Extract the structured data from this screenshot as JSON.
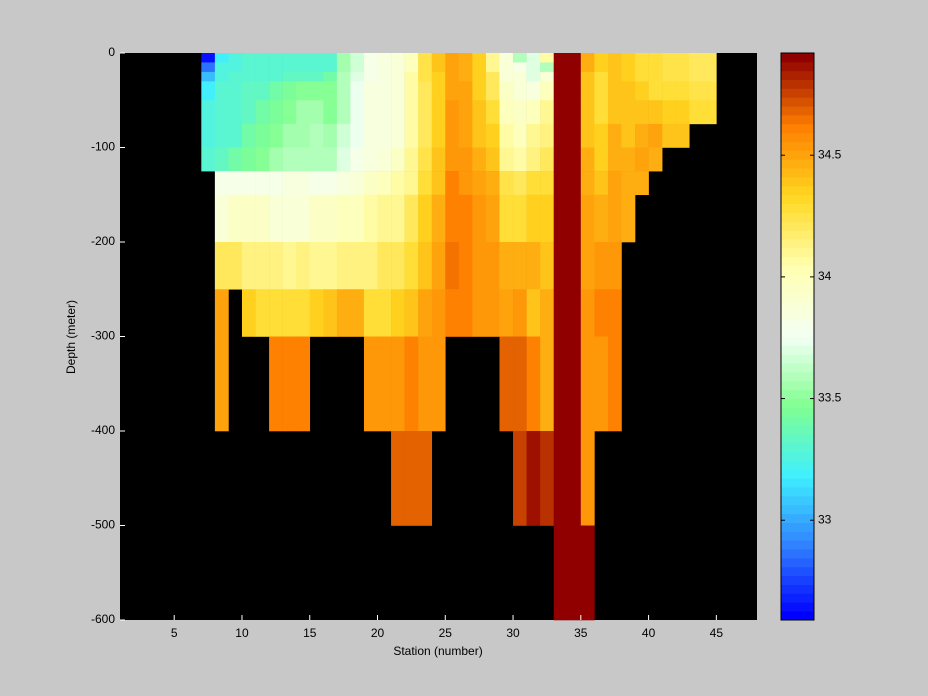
{
  "chart_data": {
    "type": "heatmap",
    "xlabel": "Station (number)",
    "ylabel": "Depth (meter)",
    "x": [
      1,
      2,
      3,
      4,
      5,
      6,
      7,
      8,
      9,
      10,
      11,
      12,
      13,
      14,
      15,
      16,
      17,
      18,
      19,
      20,
      21,
      22,
      23,
      24,
      25,
      26,
      27,
      28,
      29,
      30,
      31,
      32,
      33,
      34,
      35,
      36,
      37,
      38,
      39,
      40,
      41,
      42,
      43,
      44,
      45,
      46,
      47,
      48
    ],
    "y": [
      0,
      -10,
      -20,
      -30,
      -50,
      -75,
      -100,
      -125,
      -150,
      -200,
      -250,
      -300,
      -400,
      -500,
      -600
    ],
    "z": [
      [
        null,
        null,
        null,
        null,
        null,
        null,
        null,
        null,
        null,
        null,
        null,
        null,
        null,
        null
      ],
      [
        null,
        null,
        null,
        null,
        null,
        null,
        null,
        null,
        null,
        null,
        null,
        null,
        null,
        null
      ],
      [
        null,
        null,
        null,
        null,
        null,
        null,
        null,
        null,
        null,
        null,
        null,
        null,
        null,
        null
      ],
      [
        null,
        null,
        null,
        null,
        null,
        null,
        null,
        null,
        null,
        null,
        null,
        null,
        null,
        null
      ],
      [
        null,
        null,
        null,
        null,
        null,
        null,
        null,
        null,
        null,
        null,
        null,
        null,
        null,
        null
      ],
      [
        null,
        null,
        null,
        null,
        null,
        null,
        null,
        null,
        null,
        null,
        null,
        null,
        null,
        null
      ],
      [
        32.65,
        32.85,
        33.05,
        33.2,
        33.25,
        33.25,
        33.3,
        null,
        null,
        null,
        null,
        null,
        null,
        null
      ],
      [
        33.2,
        33.25,
        33.25,
        33.3,
        33.3,
        33.3,
        33.35,
        33.8,
        33.9,
        34.2,
        34.5,
        34.5,
        null,
        null
      ],
      [
        33.25,
        33.25,
        33.3,
        33.3,
        33.3,
        33.3,
        33.4,
        33.8,
        33.95,
        34.2,
        null,
        null,
        null,
        null
      ],
      [
        33.3,
        33.3,
        33.3,
        33.35,
        33.35,
        33.4,
        33.45,
        33.8,
        33.95,
        34.15,
        34.35,
        null,
        null,
        null
      ],
      [
        33.3,
        33.3,
        33.3,
        33.35,
        33.4,
        33.45,
        33.5,
        33.8,
        33.95,
        34.15,
        34.3,
        null,
        null,
        null
      ],
      [
        33.3,
        33.3,
        33.3,
        33.4,
        33.45,
        33.5,
        33.55,
        33.8,
        33.9,
        34.15,
        34.3,
        34.6,
        null,
        null
      ],
      [
        33.3,
        33.3,
        33.35,
        33.45,
        33.5,
        33.55,
        33.6,
        33.85,
        33.9,
        34.1,
        34.3,
        34.6,
        null,
        null
      ],
      [
        33.3,
        33.3,
        33.35,
        33.5,
        33.55,
        33.55,
        33.6,
        33.85,
        33.9,
        34.15,
        34.3,
        34.6,
        null,
        null
      ],
      [
        33.3,
        33.3,
        33.35,
        33.5,
        33.55,
        33.6,
        33.6,
        33.8,
        33.95,
        34.1,
        34.35,
        null,
        null,
        null
      ],
      [
        33.3,
        33.3,
        33.4,
        33.5,
        33.5,
        33.55,
        33.6,
        33.8,
        33.95,
        34.1,
        34.4,
        null,
        null,
        null
      ],
      [
        33.55,
        33.55,
        33.6,
        33.6,
        33.6,
        33.65,
        33.7,
        33.85,
        34.0,
        34.15,
        34.45,
        null,
        null,
        null
      ],
      [
        33.65,
        33.65,
        33.7,
        33.75,
        33.75,
        33.75,
        33.8,
        33.9,
        34.0,
        34.15,
        34.45,
        null,
        null,
        null
      ],
      [
        33.8,
        33.8,
        33.8,
        33.85,
        33.85,
        33.85,
        33.85,
        33.95,
        34.05,
        34.15,
        34.3,
        34.55,
        null,
        null
      ],
      [
        33.85,
        33.85,
        33.85,
        33.85,
        33.85,
        33.85,
        33.9,
        34.0,
        34.1,
        34.2,
        34.3,
        34.55,
        null,
        null
      ],
      [
        33.9,
        33.9,
        33.9,
        33.9,
        33.9,
        33.9,
        33.95,
        34.05,
        34.1,
        34.2,
        34.35,
        34.55,
        34.7,
        null
      ],
      [
        34.0,
        34.0,
        34.05,
        34.05,
        34.05,
        34.05,
        34.1,
        34.1,
        34.2,
        34.3,
        34.4,
        34.6,
        34.7,
        null
      ],
      [
        34.25,
        34.25,
        34.25,
        34.2,
        34.2,
        34.2,
        34.25,
        34.3,
        34.35,
        34.4,
        34.5,
        34.55,
        34.7,
        null
      ],
      [
        34.4,
        34.4,
        34.35,
        34.35,
        34.35,
        34.35,
        34.4,
        34.4,
        34.45,
        34.5,
        34.55,
        34.55,
        null,
        null
      ],
      [
        34.5,
        34.5,
        34.5,
        34.5,
        34.55,
        34.55,
        34.55,
        34.6,
        34.6,
        34.65,
        34.6,
        null,
        null,
        null
      ],
      [
        34.45,
        34.45,
        34.45,
        34.5,
        34.5,
        34.5,
        34.55,
        34.55,
        34.6,
        34.6,
        34.6,
        null,
        null,
        null
      ],
      [
        34.35,
        34.35,
        34.35,
        34.35,
        34.4,
        34.4,
        34.45,
        34.5,
        34.55,
        34.55,
        34.55,
        null,
        null,
        null
      ],
      [
        34.1,
        34.1,
        34.2,
        34.2,
        34.3,
        34.35,
        34.4,
        34.45,
        34.5,
        34.55,
        34.55,
        null,
        null,
        null
      ],
      [
        33.9,
        33.9,
        33.9,
        33.95,
        34.0,
        34.05,
        34.1,
        34.25,
        34.3,
        34.45,
        34.5,
        34.7,
        null,
        null
      ],
      [
        33.6,
        33.8,
        33.9,
        33.9,
        33.95,
        34.0,
        34.05,
        34.2,
        34.3,
        34.45,
        34.55,
        34.7,
        34.75,
        null
      ],
      [
        33.7,
        33.7,
        33.7,
        33.85,
        34.0,
        34.1,
        34.15,
        34.3,
        34.35,
        34.45,
        34.4,
        34.6,
        34.85,
        null
      ],
      [
        34.05,
        33.6,
        33.9,
        34.0,
        34.1,
        34.15,
        34.2,
        34.3,
        34.35,
        34.4,
        34.45,
        34.45,
        34.8,
        null
      ],
      [
        34.9,
        34.9,
        34.9,
        34.9,
        34.9,
        34.9,
        34.9,
        34.9,
        34.9,
        34.9,
        34.9,
        34.9,
        34.9,
        34.9
      ],
      [
        34.9,
        34.9,
        34.9,
        34.9,
        34.9,
        34.9,
        34.9,
        34.9,
        34.9,
        34.9,
        34.9,
        34.9,
        34.9,
        34.9
      ],
      [
        34.45,
        34.45,
        34.4,
        34.4,
        34.4,
        34.4,
        34.45,
        34.45,
        34.5,
        34.5,
        34.55,
        34.55,
        34.55,
        34.9
      ],
      [
        34.35,
        34.35,
        34.3,
        34.3,
        34.3,
        34.35,
        34.35,
        34.4,
        34.45,
        34.55,
        34.6,
        34.55,
        null,
        null
      ],
      [
        34.4,
        34.4,
        34.4,
        34.4,
        34.4,
        34.45,
        34.45,
        34.5,
        34.5,
        34.55,
        34.6,
        34.6,
        null,
        null
      ],
      [
        34.35,
        34.35,
        34.35,
        34.4,
        34.4,
        34.4,
        34.45,
        34.45,
        34.45,
        null,
        null,
        null,
        null,
        null
      ],
      [
        34.3,
        34.3,
        34.3,
        34.35,
        34.4,
        34.45,
        34.5,
        34.45,
        null,
        null,
        null,
        null,
        null,
        null
      ],
      [
        34.3,
        34.3,
        34.3,
        34.3,
        34.4,
        34.5,
        34.45,
        null,
        null,
        null,
        null,
        null,
        null,
        null
      ],
      [
        34.25,
        34.25,
        34.25,
        34.3,
        34.35,
        34.4,
        null,
        null,
        null,
        null,
        null,
        null,
        null,
        null
      ],
      [
        34.25,
        34.25,
        34.25,
        34.3,
        34.35,
        34.4,
        null,
        null,
        null,
        null,
        null,
        null,
        null,
        null
      ],
      [
        34.2,
        34.2,
        34.2,
        34.25,
        34.3,
        null,
        null,
        null,
        null,
        null,
        null,
        null,
        null,
        null
      ],
      [
        34.2,
        34.2,
        34.2,
        34.25,
        34.3,
        null,
        null,
        null,
        null,
        null,
        null,
        null,
        null,
        null
      ],
      [
        null,
        null,
        null,
        null,
        null,
        null,
        null,
        null,
        null,
        null,
        null,
        null,
        null,
        null
      ],
      [
        null,
        null,
        null,
        null,
        null,
        null,
        null,
        null,
        null,
        null,
        null,
        null,
        null,
        null
      ],
      [
        null,
        null,
        null,
        null,
        null,
        null,
        null,
        null,
        null,
        null,
        null,
        null,
        null,
        null
      ]
    ],
    "xlim": [
      1,
      48
    ],
    "xticks": [
      5,
      10,
      15,
      20,
      25,
      30,
      35,
      40,
      45
    ],
    "ylim": [
      -600,
      0
    ],
    "yticks": [
      0,
      -100,
      -200,
      -300,
      -400,
      -500,
      -600
    ],
    "clim": [
      32.59,
      34.92
    ],
    "cticks": [
      33,
      33.5,
      34,
      34.5
    ],
    "colormap": [
      "#0000ff",
      "#3080ff",
      "#40f0ff",
      "#80ff90",
      "#f4fff4",
      "#ffffb0",
      "#ffd820",
      "#ff8000",
      "#900000"
    ],
    "nan_color": "#000000"
  }
}
